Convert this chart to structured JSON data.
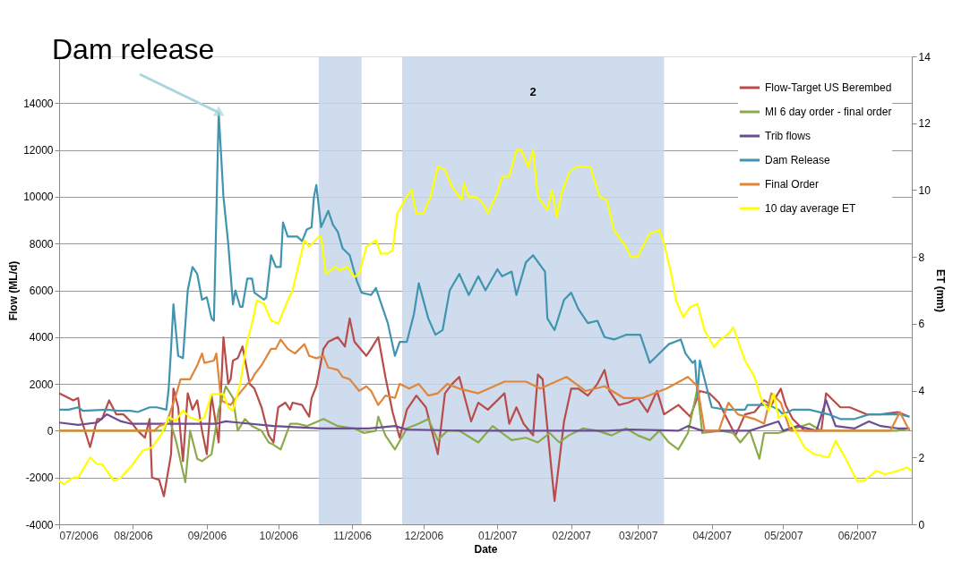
{
  "chart_data": {
    "type": "line",
    "xlabel": "Date",
    "ylabel": "Flow (ML/d)",
    "y2label": "ET (mm)",
    "xlim": [
      "2006-07-01",
      "2007-06-24"
    ],
    "xticks": [
      {
        "value": "2006-07-01",
        "label": "07/2006"
      },
      {
        "value": "2006-08-01",
        "label": "08/2006"
      },
      {
        "value": "2006-09-01",
        "label": "09/2006"
      },
      {
        "value": "2006-10-01",
        "label": "10/2006"
      },
      {
        "value": "2006-11-01",
        "label": "11/2006"
      },
      {
        "value": "2006-12-01",
        "label": "12/2006"
      },
      {
        "value": "2007-01-01",
        "label": "01/2007"
      },
      {
        "value": "2007-02-01",
        "label": "02/2007"
      },
      {
        "value": "2007-03-01",
        "label": "03/2007"
      },
      {
        "value": "2007-04-01",
        "label": "04/2007"
      },
      {
        "value": "2007-05-01",
        "label": "05/2007"
      },
      {
        "value": "2007-06-01",
        "label": "06/2007"
      }
    ],
    "ylim": [
      -4000,
      16000
    ],
    "yticks": [
      -4000,
      -2000,
      0,
      2000,
      4000,
      6000,
      8000,
      10000,
      12000,
      14000
    ],
    "y2lim": [
      0,
      14
    ],
    "y2ticks": [
      0,
      2,
      4,
      6,
      8,
      10,
      12,
      14
    ],
    "grid": "y",
    "legend": "top right",
    "bands": [
      {
        "axis": "x",
        "from": "2006-10-18",
        "to": "2006-11-05",
        "label": null,
        "color": "#c5d6ea"
      },
      {
        "axis": "x",
        "from": "2006-11-22",
        "to": "2007-03-12",
        "label": "2",
        "color": "#c5d6ea"
      }
    ],
    "annotations": [
      {
        "text": "Dam release",
        "x": "2006-09-06",
        "y": 13600
      }
    ],
    "series": [
      {
        "name": "Flow-Target US Berembed",
        "color": "#b84c4a",
        "x": [
          "2006-07-01",
          "2006-07-07",
          "2006-07-09",
          "2006-07-10",
          "2006-07-14",
          "2006-07-17",
          "2006-07-19",
          "2006-07-22",
          "2006-07-25",
          "2006-07-28",
          "2006-07-31",
          "2006-08-03",
          "2006-08-06",
          "2006-08-08",
          "2006-08-09",
          "2006-08-12",
          "2006-08-14",
          "2006-08-17",
          "2006-08-18",
          "2006-08-20",
          "2006-08-22",
          "2006-08-24",
          "2006-08-26",
          "2006-08-28",
          "2006-08-30",
          "2006-09-01",
          "2006-09-03",
          "2006-09-06",
          "2006-09-08",
          "2006-09-10",
          "2006-09-11",
          "2006-09-12",
          "2006-09-14",
          "2006-09-16",
          "2006-09-19",
          "2006-09-21",
          "2006-09-24",
          "2006-09-27",
          "2006-09-29",
          "2006-10-01",
          "2006-10-04",
          "2006-10-06",
          "2006-10-07",
          "2006-10-11",
          "2006-10-14",
          "2006-10-15",
          "2006-10-17",
          "2006-10-20",
          "2006-10-22",
          "2006-10-26",
          "2006-10-29",
          "2006-10-31",
          "2006-11-02",
          "2006-11-07",
          "2006-11-09",
          "2006-11-12",
          "2006-11-15",
          "2006-11-18",
          "2006-11-21",
          "2006-11-24",
          "2006-11-28",
          "2006-12-02",
          "2006-12-07",
          "2006-12-10",
          "2006-12-13",
          "2006-12-16",
          "2006-12-21",
          "2006-12-24",
          "2006-12-28",
          "2007-01-01",
          "2007-01-04",
          "2007-01-06",
          "2007-01-09",
          "2007-01-12",
          "2007-01-16",
          "2007-01-18",
          "2007-01-20",
          "2007-01-25",
          "2007-01-29",
          "2007-02-01",
          "2007-02-04",
          "2007-02-08",
          "2007-02-12",
          "2007-02-15",
          "2007-02-17",
          "2007-02-21",
          "2007-02-25",
          "2007-03-01",
          "2007-03-05",
          "2007-03-09",
          "2007-03-12",
          "2007-03-18",
          "2007-03-23",
          "2007-03-27",
          "2007-03-31",
          "2007-04-04",
          "2007-04-08",
          "2007-04-11",
          "2007-04-15",
          "2007-04-19",
          "2007-04-23",
          "2007-04-26",
          "2007-04-30",
          "2007-05-02",
          "2007-05-05",
          "2007-05-10",
          "2007-05-17",
          "2007-05-19",
          "2007-05-25",
          "2007-05-29",
          "2007-06-05",
          "2007-06-11",
          "2007-06-18",
          "2007-06-23"
        ],
        "values": [
          1600,
          1300,
          1400,
          600,
          -700,
          500,
          500,
          1300,
          700,
          700,
          400,
          0,
          -300,
          500,
          -2000,
          -2100,
          -2800,
          -1000,
          1800,
          1000,
          -1300,
          1600,
          900,
          1300,
          0,
          -1000,
          1500,
          -500,
          4000,
          2000,
          2200,
          3000,
          3100,
          3600,
          2000,
          1800,
          1000,
          -200,
          -500,
          1000,
          1200,
          900,
          1200,
          1100,
          600,
          1400,
          1900,
          3500,
          3800,
          4000,
          3600,
          4800,
          3800,
          3200,
          3500,
          4000,
          2300,
          800,
          -300,
          900,
          1500,
          1000,
          -1000,
          1600,
          2000,
          2300,
          400,
          1200,
          900,
          1300,
          1600,
          300,
          1000,
          300,
          -200,
          2400,
          2200,
          -3000,
          400,
          1800,
          1800,
          1500,
          2000,
          2600,
          1700,
          1100,
          1200,
          1400,
          800,
          1700,
          700,
          1100,
          600,
          1700,
          1600,
          1200,
          400,
          -200,
          700,
          800,
          1300,
          1100,
          1800,
          1100,
          500,
          0,
          0,
          1600,
          1000,
          1000,
          700,
          700,
          800,
          600
        ]
      },
      {
        "name": "MI 6 day order - final order",
        "color": "#8daa4b",
        "x": [
          "2006-07-01",
          "2006-08-06",
          "2006-08-09",
          "2006-08-14",
          "2006-08-16",
          "2006-08-19",
          "2006-08-23",
          "2006-08-25",
          "2006-08-28",
          "2006-08-30",
          "2006-09-03",
          "2006-09-06",
          "2006-09-09",
          "2006-09-12",
          "2006-09-14",
          "2006-09-17",
          "2006-09-20",
          "2006-09-24",
          "2006-09-27",
          "2006-09-29",
          "2006-10-02",
          "2006-10-06",
          "2006-10-09",
          "2006-10-13",
          "2006-10-20",
          "2006-10-26",
          "2006-11-02",
          "2006-11-06",
          "2006-11-11",
          "2006-11-12",
          "2006-11-15",
          "2006-11-19",
          "2006-11-24",
          "2006-11-29",
          "2006-12-03",
          "2006-12-07",
          "2006-12-11",
          "2006-12-16",
          "2006-12-24",
          "2006-12-30",
          "2007-01-07",
          "2007-01-13",
          "2007-01-18",
          "2007-01-23",
          "2007-01-27",
          "2007-01-31",
          "2007-02-06",
          "2007-02-12",
          "2007-02-18",
          "2007-02-24",
          "2007-03-01",
          "2007-03-06",
          "2007-03-10",
          "2007-03-14",
          "2007-03-18",
          "2007-03-22",
          "2007-03-26",
          "2007-03-28",
          "2007-04-05",
          "2007-04-10",
          "2007-04-13",
          "2007-04-17",
          "2007-04-21",
          "2007-04-23",
          "2007-04-29",
          "2007-05-06",
          "2007-05-12",
          "2007-05-17",
          "2007-06-06",
          "2007-06-18",
          "2007-06-23"
        ],
        "values": [
          0,
          0,
          0,
          0,
          600,
          -400,
          -2200,
          0,
          -1200,
          -1300,
          -1000,
          900,
          1900,
          1400,
          0,
          500,
          200,
          0,
          -500,
          -600,
          -800,
          300,
          300,
          200,
          500,
          200,
          100,
          -100,
          0,
          600,
          -200,
          -800,
          100,
          300,
          500,
          -400,
          0,
          0,
          -500,
          200,
          -400,
          -300,
          -500,
          -100,
          -500,
          -200,
          100,
          0,
          -200,
          100,
          -200,
          -400,
          0,
          -500,
          -800,
          -100,
          1800,
          -100,
          0,
          -100,
          -500,
          0,
          -1200,
          -100,
          -100,
          100,
          300,
          0,
          0,
          0,
          100
        ]
      },
      {
        "name": "Trib flows",
        "color": "#6b4d94",
        "x": [
          "2006-07-01",
          "2006-07-09",
          "2006-07-17",
          "2006-07-21",
          "2006-07-27",
          "2006-07-31",
          "2006-08-10",
          "2006-08-20",
          "2006-08-30",
          "2006-09-05",
          "2006-09-09",
          "2006-09-14",
          "2006-09-29",
          "2006-10-19",
          "2006-11-08",
          "2006-11-19",
          "2006-11-24",
          "2006-12-18",
          "2007-02-01",
          "2007-02-16",
          "2007-02-26",
          "2007-03-18",
          "2007-03-22",
          "2007-03-28",
          "2007-04-17",
          "2007-04-29",
          "2007-05-01",
          "2007-05-07",
          "2007-05-15",
          "2007-05-19",
          "2007-05-23",
          "2007-05-31",
          "2007-06-06",
          "2007-06-11",
          "2007-06-18",
          "2007-06-23"
        ],
        "values": [
          350,
          250,
          350,
          700,
          400,
          300,
          300,
          300,
          300,
          300,
          400,
          350,
          200,
          100,
          100,
          200,
          50,
          0,
          0,
          0,
          50,
          0,
          200,
          0,
          0,
          400,
          0,
          200,
          0,
          1300,
          200,
          100,
          400,
          200,
          100,
          100
        ]
      },
      {
        "name": "Dam Release",
        "color": "#3f95b0",
        "x": [
          "2006-07-01",
          "2006-07-05",
          "2006-07-09",
          "2006-07-11",
          "2006-07-21",
          "2006-07-26",
          "2006-07-31",
          "2006-08-03",
          "2006-08-08",
          "2006-08-11",
          "2006-08-15",
          "2006-08-16",
          "2006-08-17",
          "2006-08-18",
          "2006-08-20",
          "2006-08-22",
          "2006-08-24",
          "2006-08-26",
          "2006-08-28",
          "2006-08-30",
          "2006-09-01",
          "2006-09-03",
          "2006-09-04",
          "2006-09-06",
          "2006-09-08",
          "2006-09-10",
          "2006-09-12",
          "2006-09-13",
          "2006-09-15",
          "2006-09-16",
          "2006-09-18",
          "2006-09-20",
          "2006-09-21",
          "2006-09-25",
          "2006-09-26",
          "2006-09-28",
          "2006-09-30",
          "2006-10-02",
          "2006-10-03",
          "2006-10-05",
          "2006-10-09",
          "2006-10-11",
          "2006-10-13",
          "2006-10-15",
          "2006-10-16",
          "2006-10-17",
          "2006-10-19",
          "2006-10-22",
          "2006-10-24",
          "2006-10-26",
          "2006-10-28",
          "2006-10-31",
          "2006-11-03",
          "2006-11-05",
          "2006-11-09",
          "2006-11-11",
          "2006-11-13",
          "2006-11-16",
          "2006-11-19",
          "2006-11-21",
          "2006-11-24",
          "2006-11-27",
          "2006-11-29",
          "2006-12-03",
          "2006-12-06",
          "2006-12-09",
          "2006-12-12",
          "2006-12-16",
          "2006-12-20",
          "2006-12-24",
          "2006-12-27",
          "2007-01-01",
          "2007-01-03",
          "2007-01-07",
          "2007-01-09",
          "2007-01-13",
          "2007-01-16",
          "2007-01-21",
          "2007-01-22",
          "2007-01-25",
          "2007-01-29",
          "2007-02-01",
          "2007-02-04",
          "2007-02-08",
          "2007-02-12",
          "2007-02-15",
          "2007-02-19",
          "2007-02-24",
          "2007-03-02",
          "2007-03-06",
          "2007-03-11",
          "2007-03-14",
          "2007-03-19",
          "2007-03-21",
          "2007-03-24",
          "2007-03-25",
          "2007-03-26",
          "2007-03-27",
          "2007-04-01",
          "2007-04-07",
          "2007-04-15",
          "2007-04-16",
          "2007-04-25",
          "2007-04-29",
          "2007-05-01",
          "2007-05-05",
          "2007-05-12",
          "2007-05-20",
          "2007-05-25",
          "2007-05-31",
          "2007-06-06",
          "2007-06-19",
          "2007-06-23"
        ],
        "values": [
          900,
          900,
          1000,
          850,
          900,
          850,
          850,
          800,
          1000,
          1000,
          900,
          1800,
          3500,
          5400,
          3200,
          3100,
          6000,
          7000,
          6700,
          5600,
          5700,
          4800,
          4700,
          13600,
          10000,
          8000,
          5400,
          6000,
          5300,
          5300,
          6500,
          6500,
          5900,
          5600,
          5700,
          7500,
          7000,
          7000,
          8900,
          8300,
          8300,
          8100,
          8600,
          8700,
          10000,
          10500,
          8700,
          9400,
          8800,
          8500,
          7800,
          7500,
          6400,
          5900,
          5800,
          6100,
          5500,
          4600,
          3200,
          3800,
          3800,
          5000,
          6300,
          4800,
          4100,
          4300,
          6000,
          6700,
          5800,
          6600,
          6000,
          6900,
          6600,
          6800,
          5800,
          7200,
          7500,
          6800,
          4800,
          4300,
          5600,
          5900,
          5200,
          4600,
          4700,
          4000,
          3900,
          4100,
          4100,
          2900,
          3400,
          3700,
          3900,
          3300,
          2900,
          3000,
          1500,
          3000,
          1000,
          900,
          900,
          1100,
          1100,
          900,
          700,
          900,
          900,
          700,
          500,
          500,
          700,
          700,
          600
        ]
      },
      {
        "name": "Final Order",
        "color": "#e0863a",
        "x": [
          "2006-07-01",
          "2006-08-10",
          "2006-08-12",
          "2006-08-15",
          "2006-08-19",
          "2006-08-21",
          "2006-08-25",
          "2006-08-28",
          "2006-08-30",
          "2006-08-31",
          "2006-09-04",
          "2006-09-05",
          "2006-09-07",
          "2006-09-11",
          "2006-09-14",
          "2006-09-18",
          "2006-09-20",
          "2006-09-21",
          "2006-09-24",
          "2006-09-28",
          "2006-09-30",
          "2006-10-02",
          "2006-10-05",
          "2006-10-08",
          "2006-10-12",
          "2006-10-14",
          "2006-10-17",
          "2006-10-20",
          "2006-10-22",
          "2006-10-26",
          "2006-10-28",
          "2006-10-31",
          "2006-11-04",
          "2006-11-07",
          "2006-11-09",
          "2006-11-12",
          "2006-11-15",
          "2006-11-19",
          "2006-11-21",
          "2006-11-25",
          "2006-11-29",
          "2006-12-03",
          "2006-12-07",
          "2006-12-11",
          "2006-12-16",
          "2006-12-24",
          "2007-01-04",
          "2007-01-13",
          "2007-01-19",
          "2007-01-30",
          "2007-02-07",
          "2007-02-15",
          "2007-02-23",
          "2007-03-03",
          "2007-03-13",
          "2007-03-22",
          "2007-03-26",
          "2007-03-29",
          "2007-04-04",
          "2007-04-08",
          "2007-04-12",
          "2007-04-19",
          "2007-04-23",
          "2007-04-26",
          "2007-04-30",
          "2007-05-04",
          "2007-05-22",
          "2007-06-15",
          "2007-06-19",
          "2007-06-23"
        ],
        "values": [
          0,
          0,
          200,
          300,
          1500,
          2200,
          2200,
          2800,
          3300,
          2900,
          3000,
          3300,
          1300,
          1100,
          1500,
          2000,
          2200,
          2400,
          2800,
          3500,
          3500,
          3900,
          3500,
          3300,
          3700,
          3200,
          3100,
          3200,
          2700,
          2600,
          2300,
          2200,
          1700,
          1900,
          1700,
          1100,
          1500,
          1400,
          2000,
          1800,
          2000,
          1500,
          1600,
          2000,
          1800,
          1600,
          2100,
          2100,
          1800,
          2300,
          1700,
          1900,
          1400,
          1400,
          1800,
          2300,
          1900,
          0,
          0,
          1200,
          700,
          500,
          300,
          1600,
          1200,
          0,
          0,
          0,
          800,
          0
        ]
      },
      {
        "name": "10 day average ET",
        "color": "#ffff00",
        "axis": "y2",
        "x": [
          "2006-07-01",
          "2006-07-03",
          "2006-07-07",
          "2006-07-09",
          "2006-07-14",
          "2006-07-17",
          "2006-07-19",
          "2006-07-24",
          "2006-07-27",
          "2006-08-01",
          "2006-08-05",
          "2006-08-09",
          "2006-08-13",
          "2006-08-16",
          "2006-08-19",
          "2006-08-22",
          "2006-08-25",
          "2006-08-29",
          "2006-08-31",
          "2006-09-03",
          "2006-09-06",
          "2006-09-08",
          "2006-09-10",
          "2006-09-12",
          "2006-09-15",
          "2006-09-18",
          "2006-09-20",
          "2006-09-22",
          "2006-09-25",
          "2006-09-28",
          "2006-10-01",
          "2006-10-05",
          "2006-10-07",
          "2006-10-10",
          "2006-10-12",
          "2006-10-14",
          "2006-10-18",
          "2006-10-19",
          "2006-10-21",
          "2006-10-25",
          "2006-10-27",
          "2006-10-30",
          "2006-11-02",
          "2006-11-04",
          "2006-11-07",
          "2006-11-11",
          "2006-11-13",
          "2006-11-16",
          "2006-11-18",
          "2006-11-20",
          "2006-11-24",
          "2006-11-26",
          "2006-11-28",
          "2006-12-01",
          "2006-12-04",
          "2006-12-07",
          "2006-12-10",
          "2006-12-13",
          "2006-12-17",
          "2006-12-18",
          "2006-12-20",
          "2006-12-23",
          "2006-12-26",
          "2006-12-28",
          "2007-01-01",
          "2007-01-03",
          "2007-01-06",
          "2007-01-09",
          "2007-01-11",
          "2007-01-14",
          "2007-01-16",
          "2007-01-18",
          "2007-01-22",
          "2007-01-24",
          "2007-01-26",
          "2007-01-28",
          "2007-01-31",
          "2007-02-03",
          "2007-02-09",
          "2007-02-13",
          "2007-02-16",
          "2007-02-19",
          "2007-02-24",
          "2007-02-26",
          "2007-03-01",
          "2007-03-03",
          "2007-03-06",
          "2007-03-10",
          "2007-03-12",
          "2007-03-15",
          "2007-03-17",
          "2007-03-20",
          "2007-03-23",
          "2007-03-26",
          "2007-03-29",
          "2007-04-02",
          "2007-04-04",
          "2007-04-08",
          "2007-04-10",
          "2007-04-13",
          "2007-04-15",
          "2007-04-19",
          "2007-04-22",
          "2007-04-25",
          "2007-04-27",
          "2007-04-29",
          "2007-05-02",
          "2007-05-06",
          "2007-05-10",
          "2007-05-14",
          "2007-05-20",
          "2007-05-23",
          "2007-05-27",
          "2007-06-01",
          "2007-06-04",
          "2007-06-09",
          "2007-06-13",
          "2007-06-18",
          "2007-06-22",
          "2007-06-24"
        ],
        "values": [
          1.3,
          1.2,
          1.4,
          1.4,
          2.0,
          1.8,
          1.8,
          1.3,
          1.4,
          1.8,
          2.2,
          2.3,
          2.7,
          3.2,
          3.1,
          3.4,
          3.2,
          3.1,
          3.2,
          3.9,
          3.9,
          3.9,
          3.5,
          3.4,
          4.2,
          5.5,
          6.0,
          6.7,
          6.6,
          6.1,
          6.0,
          6.7,
          7.0,
          7.9,
          8.5,
          8.3,
          8.6,
          8.6,
          7.5,
          7.7,
          7.6,
          7.7,
          7.4,
          7.5,
          8.3,
          8.5,
          8.1,
          8.1,
          8.2,
          9.3,
          9.8,
          10.0,
          9.3,
          9.3,
          9.8,
          10.7,
          10.6,
          10.1,
          9.7,
          10.2,
          9.8,
          9.8,
          9.6,
          9.3,
          9.9,
          10.4,
          10.4,
          11.2,
          11.2,
          10.7,
          11.2,
          9.8,
          9.4,
          10.0,
          9.2,
          9.9,
          10.5,
          10.7,
          10.7,
          9.8,
          9.7,
          8.8,
          8.3,
          8.0,
          8.0,
          8.3,
          8.7,
          8.8,
          8.4,
          7.5,
          6.7,
          6.2,
          6.5,
          6.6,
          5.8,
          5.3,
          5.5,
          5.7,
          5.9,
          5.3,
          4.9,
          4.4,
          3.7,
          3.4,
          3.9,
          3.2,
          3.3,
          2.8,
          2.3,
          2.1,
          2.0,
          2.5,
          2.0,
          1.3,
          1.3,
          1.6,
          1.5,
          1.6,
          1.7,
          1.6
        ]
      }
    ]
  }
}
